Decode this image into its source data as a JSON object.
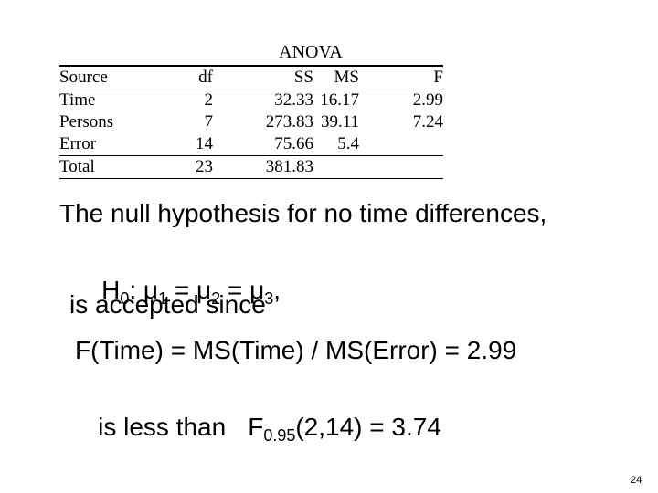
{
  "table": {
    "title": "ANOVA",
    "header": [
      "Source",
      "df",
      "SS",
      "MS",
      "F"
    ],
    "rows": [
      [
        "Time",
        2,
        32.33,
        16.17,
        2.99
      ],
      [
        "Persons",
        7,
        273.83,
        39.11,
        7.24
      ],
      [
        "Error",
        14,
        75.66,
        5.4
      ],
      [
        "Total",
        23,
        381.83
      ]
    ]
  },
  "body": {
    "line1": "The null hypothesis for no time differences,",
    "hypothesis": [
      "H",
      "0",
      ": μ",
      "1",
      " = μ",
      "2",
      " = μ",
      "3",
      ","
    ],
    "line3": "is accepted since",
    "line4": "F(Time) = MS(Time) / MS(Error) = 2.99",
    "line5": [
      "is less than",
      "F",
      "0.95",
      "(2,14) = 3.74"
    ]
  },
  "page_number": "24"
}
